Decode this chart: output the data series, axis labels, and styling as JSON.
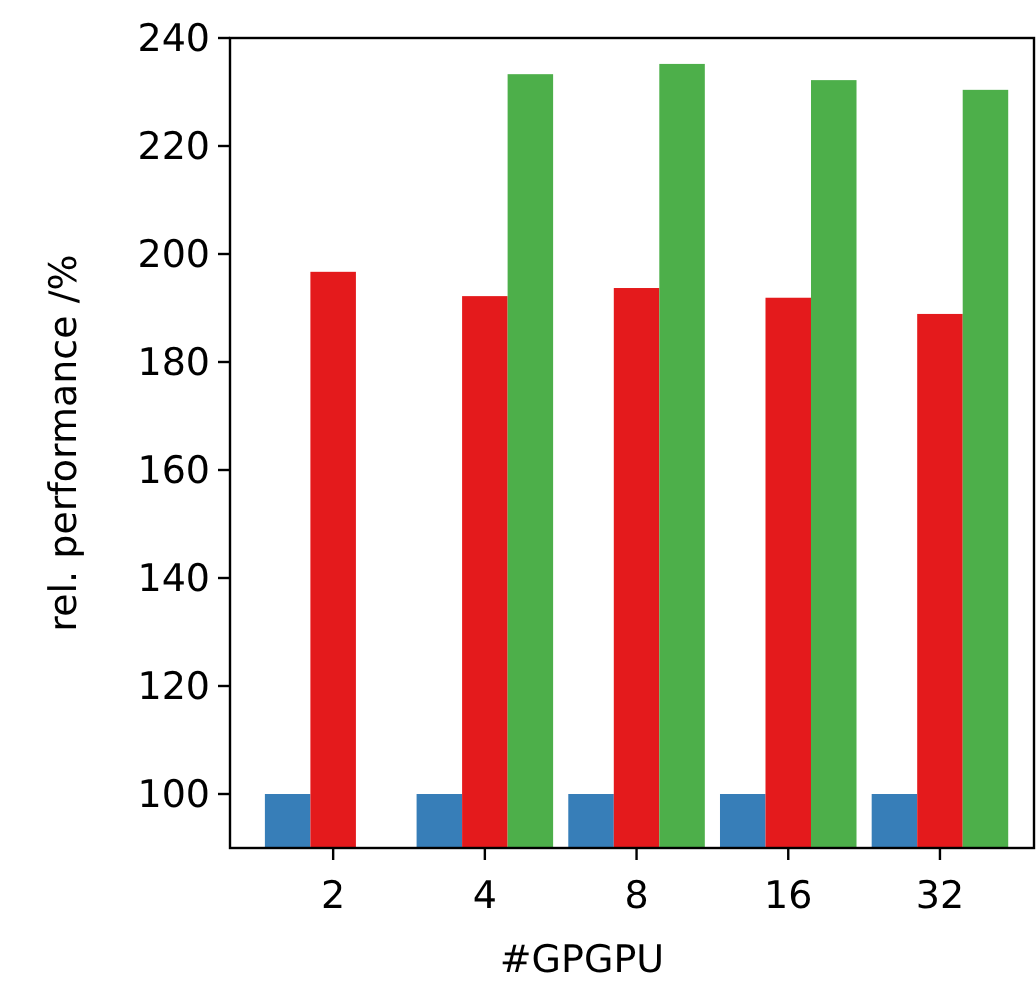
{
  "chart_data": {
    "type": "bar",
    "xlabel": "#GPGPU",
    "ylabel": "rel. performance /%",
    "categories": [
      "2",
      "4",
      "8",
      "16",
      "32"
    ],
    "series": [
      {
        "color": "#377eb8",
        "values": [
          100,
          100,
          100,
          100,
          100
        ]
      },
      {
        "color": "#e41a1c",
        "values": [
          196.7,
          192.2,
          193.7,
          191.9,
          188.9
        ]
      },
      {
        "color": "#4daf4a",
        "values": [
          null,
          233.3,
          235.2,
          232.2,
          230.4
        ]
      }
    ],
    "ylim": [
      90,
      240
    ],
    "yticks": [
      100,
      120,
      140,
      160,
      180,
      200,
      220,
      240
    ],
    "grid": false
  }
}
